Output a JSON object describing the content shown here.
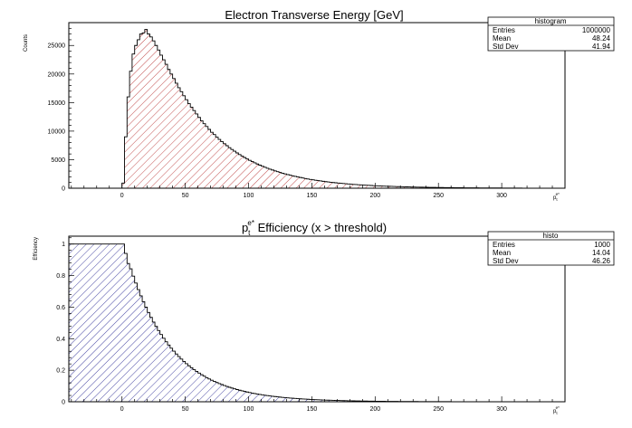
{
  "chart_data": [
    {
      "type": "histogram",
      "title": "Electron Transverse Energy [GeV]",
      "xlabel": "p_t^e*",
      "xlabel_main": "p",
      "xlabel_sub": "t",
      "xlabel_sup": "e*",
      "ylabel": "Counts",
      "xlim": [
        -42,
        350
      ],
      "ylim": [
        0,
        29000
      ],
      "xticks": [
        0,
        50,
        100,
        150,
        200,
        250,
        300
      ],
      "yticks": [
        0,
        5000,
        10000,
        15000,
        20000,
        25000
      ],
      "fill": "diagonal-hatch",
      "color": "#b22222",
      "stats": {
        "name": "histogram",
        "rows": [
          {
            "label": "Entries",
            "value": "1000000"
          },
          {
            "label": "Mean",
            "value": "48.24"
          },
          {
            "label": "Std Dev",
            "value": "41.94"
          }
        ]
      },
      "bin_width": 2,
      "x_start": 0,
      "values": [
        900,
        9000,
        16000,
        20500,
        23500,
        25000,
        26000,
        27000,
        27200,
        27800,
        27000,
        26500,
        25800,
        25000,
        24200,
        23300,
        22500,
        21700,
        20800,
        20000,
        19200,
        18400,
        17600,
        16900,
        16200,
        15500,
        14800,
        14200,
        13600,
        13000,
        12400,
        11800,
        11300,
        10800,
        10300,
        9800,
        9400,
        8950,
        8550,
        8150,
        7800,
        7450,
        7100,
        6780,
        6480,
        6180,
        5900,
        5620,
        5370,
        5120,
        4880,
        4660,
        4440,
        4240,
        4040,
        3850,
        3670,
        3500,
        3340,
        3190,
        3040,
        2900,
        2760,
        2630,
        2510,
        2390,
        2280,
        2170,
        2070,
        1970,
        1880,
        1790,
        1700,
        1620,
        1540,
        1470,
        1400,
        1330,
        1270,
        1210,
        1150,
        1100,
        1040,
        990,
        950,
        900,
        860,
        820,
        780,
        740,
        705,
        670,
        640,
        610,
        580,
        550,
        525,
        500,
        475,
        452,
        430,
        410,
        390,
        372,
        354,
        337,
        321,
        305,
        290,
        276,
        263,
        250,
        238,
        226,
        215,
        205,
        195,
        186,
        177,
        168,
        160,
        152,
        145,
        138,
        131,
        125,
        119,
        113,
        108,
        103,
        98,
        93,
        88,
        84,
        80,
        76,
        72,
        69,
        66,
        62,
        59,
        56,
        54,
        51,
        49,
        46,
        44,
        42,
        40,
        38,
        36,
        34,
        32,
        31,
        29,
        28,
        26,
        25
      ]
    },
    {
      "type": "histogram",
      "title_main": "p",
      "title_sub": "t",
      "title_sup": "e*",
      "title_rest": " Efficiency (x > threshold)",
      "xlabel": "p_t^e*",
      "xlabel_main": "p",
      "xlabel_sub": "t",
      "xlabel_sup": "e*",
      "ylabel": "Efficiency",
      "xlim": [
        -42,
        350
      ],
      "ylim": [
        0,
        1.05
      ],
      "xticks": [
        0,
        50,
        100,
        150,
        200,
        250,
        300
      ],
      "yticks": [
        0,
        0.2,
        0.4,
        0.6,
        0.8,
        1
      ],
      "fill": "diagonal-hatch",
      "color": "#1a1a8c",
      "stats": {
        "name": "histo",
        "rows": [
          {
            "label": "Entries",
            "value": "1000"
          },
          {
            "label": "Mean",
            "value": "14.04"
          },
          {
            "label": "Std Dev",
            "value": "46.26"
          }
        ]
      },
      "bin_width": 2,
      "x_start": -42,
      "flat_until": 0,
      "decay_scale": 38,
      "x_end": 310
    }
  ]
}
